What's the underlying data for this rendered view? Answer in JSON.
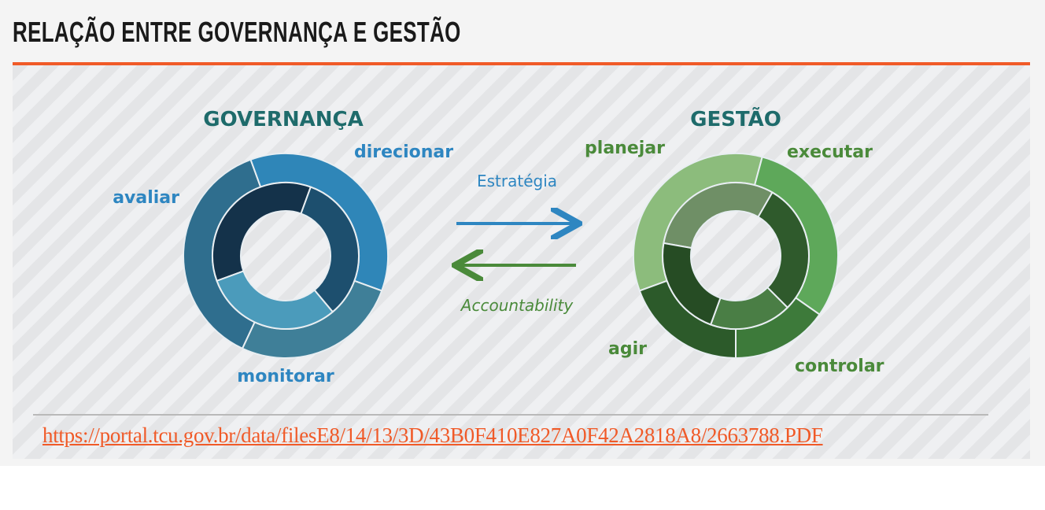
{
  "header": {
    "title": "RELAÇÃO ENTRE GOVERNANÇA E GESTÃO"
  },
  "diagram": {
    "governanca": {
      "title": "GOVERNANÇA",
      "stages": [
        "avaliar",
        "direcionar",
        "monitorar"
      ]
    },
    "gestao": {
      "title": "GESTÃO",
      "stages": [
        "planejar",
        "executar",
        "controlar",
        "agir"
      ]
    },
    "flows": {
      "forward": "Estratégia",
      "backward": "Accountability"
    },
    "colors": {
      "orange": "#f05a28",
      "blue_title": "#1f6e75",
      "blue_label": "#2e86c1",
      "green_label": "#4a8a3a",
      "title_teal": "#1e6b6b"
    }
  },
  "source": {
    "url": "https://portal.tcu.gov.br/data/filesE8/14/13/3D/43B0F410E827A0F42A2818A8/2663788.PDF"
  }
}
